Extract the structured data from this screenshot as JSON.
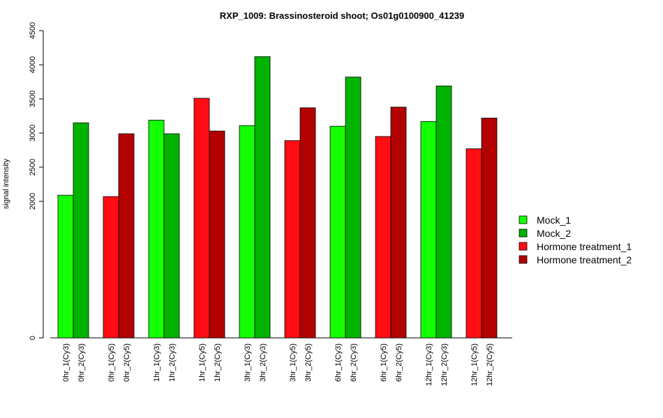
{
  "chart_data": {
    "type": "bar",
    "title": "RXP_1009: Brassinosteroid shoot; Os01g0100900_41239",
    "ylabel": "signal intensity",
    "xlabel": "",
    "ylim": [
      0,
      4500
    ],
    "yticks": [
      0,
      2000,
      2500,
      3000,
      3500,
      4000,
      4500
    ],
    "grid": false,
    "legend_position": "right",
    "bars": [
      {
        "label": "0hr_1(Cy3)",
        "value": 2090,
        "series": 0
      },
      {
        "label": "0hr_2(Cy3)",
        "value": 3150,
        "series": 1
      },
      {
        "label": "0hr_1(Cy5)",
        "value": 2070,
        "series": 2
      },
      {
        "label": "0hr_2(Cy5)",
        "value": 2990,
        "series": 3
      },
      {
        "label": "1hr_1(Cy3)",
        "value": 3190,
        "series": 0
      },
      {
        "label": "1hr_2(Cy3)",
        "value": 2990,
        "series": 1
      },
      {
        "label": "1hr_1(Cy5)",
        "value": 3510,
        "series": 2
      },
      {
        "label": "1hr_2(Cy5)",
        "value": 3030,
        "series": 3
      },
      {
        "label": "3hr_1(Cy3)",
        "value": 3110,
        "series": 0
      },
      {
        "label": "3hr_2(Cy3)",
        "value": 4120,
        "series": 1
      },
      {
        "label": "3hr_1(Cy5)",
        "value": 2890,
        "series": 2
      },
      {
        "label": "3hr_2(Cy5)",
        "value": 3370,
        "series": 3
      },
      {
        "label": "6hr_1(Cy3)",
        "value": 3100,
        "series": 0
      },
      {
        "label": "6hr_2(Cy3)",
        "value": 3820,
        "series": 1
      },
      {
        "label": "6hr_1(Cy5)",
        "value": 2950,
        "series": 2
      },
      {
        "label": "6hr_2(Cy5)",
        "value": 3380,
        "series": 3
      },
      {
        "label": "12hr_1(Cy3)",
        "value": 3170,
        "series": 0
      },
      {
        "label": "12hr_2(Cy3)",
        "value": 3690,
        "series": 1
      },
      {
        "label": "12hr_1(Cy5)",
        "value": 2770,
        "series": 2
      },
      {
        "label": "12hr_2(Cy5)",
        "value": 3220,
        "series": 3
      }
    ],
    "series": [
      {
        "name": "Mock_1",
        "color": "#14ff00"
      },
      {
        "name": "Mock_2",
        "color": "#00b300"
      },
      {
        "name": "Hormone treatment_1",
        "color": "#ff0d12"
      },
      {
        "name": "Hormone treatment_2",
        "color": "#b30000"
      }
    ]
  }
}
